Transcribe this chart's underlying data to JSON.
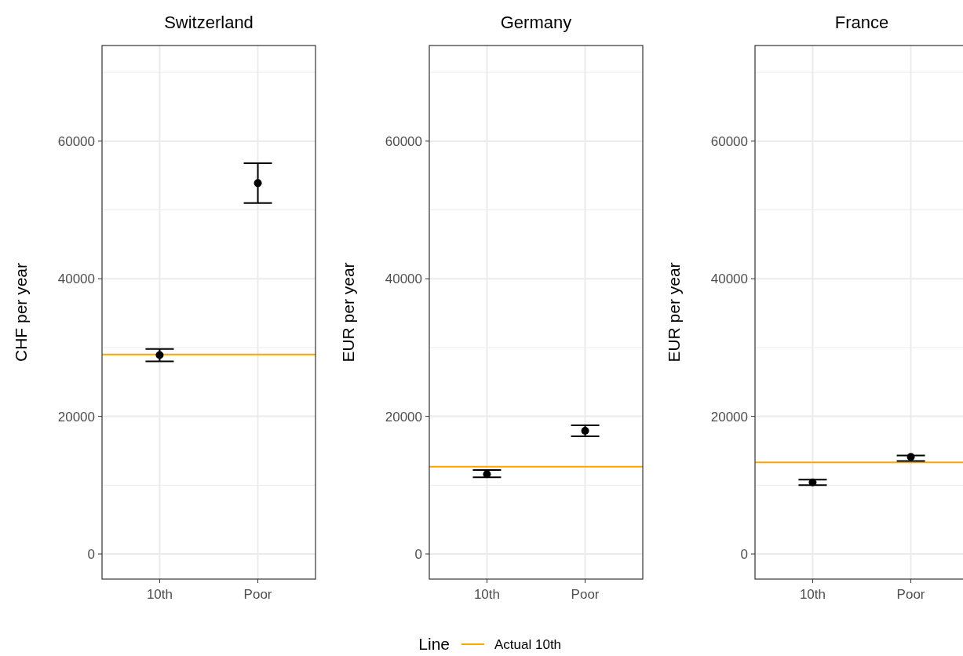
{
  "chart_data": [
    {
      "type": "scatter",
      "title": "Switzerland",
      "ylabel": "CHF per year",
      "categories": [
        "10th",
        "Poor"
      ],
      "ylim": [
        -3650,
        73900
      ],
      "yticks": [
        0,
        {
          "value": 10000,
          "label": null
        },
        20000,
        {
          "value": 30000,
          "label": null
        },
        40000,
        {
          "value": 50000,
          "label": null
        },
        60000,
        {
          "value": 70000,
          "label": null
        }
      ],
      "grid": true,
      "marker": "circle",
      "series": [
        {
          "color": "#000000",
          "values": [
            28900,
            53900
          ],
          "errors": [
            [
              28000,
              29800
            ],
            [
              51000,
              56800
            ]
          ]
        }
      ],
      "ref_lines": [
        {
          "axis": "y",
          "value": 29000,
          "color": "#ffa500"
        }
      ]
    },
    {
      "type": "scatter",
      "title": "Germany",
      "ylabel": "EUR per year",
      "categories": [
        "10th",
        "Poor"
      ],
      "ylim": [
        -3650,
        73900
      ],
      "yticks": [
        0,
        {
          "value": 10000,
          "label": null
        },
        20000,
        {
          "value": 30000,
          "label": null
        },
        40000,
        {
          "value": 50000,
          "label": null
        },
        60000,
        {
          "value": 70000,
          "label": null
        }
      ],
      "grid": true,
      "marker": "circle",
      "legend": "bottom",
      "legend_title": "Line",
      "series": [
        {
          "color": "#000000",
          "values": [
            11600,
            17900
          ],
          "errors": [
            [
              11150,
              12200
            ],
            [
              17100,
              18700
            ]
          ]
        }
      ],
      "ref_lines": [
        {
          "axis": "y",
          "value": 12700,
          "label": "Actual 10th",
          "color": "#ffa500"
        }
      ]
    },
    {
      "type": "scatter",
      "title": "France",
      "ylabel": "EUR per year",
      "categories": [
        "10th",
        "Poor"
      ],
      "ylim": [
        -3650,
        73900
      ],
      "yticks": [
        0,
        {
          "value": 10000,
          "label": null
        },
        20000,
        {
          "value": 30000,
          "label": null
        },
        40000,
        {
          "value": 50000,
          "label": null
        },
        60000,
        {
          "value": 70000,
          "label": null
        }
      ],
      "grid": true,
      "marker": "circle",
      "series": [
        {
          "color": "#000000",
          "values": [
            10400,
            14100
          ],
          "errors": [
            [
              10000,
              10800
            ],
            [
              13500,
              14300
            ]
          ]
        }
      ],
      "ref_lines": [
        {
          "axis": "y",
          "value": 13300,
          "color": "#ffa500"
        }
      ]
    }
  ]
}
